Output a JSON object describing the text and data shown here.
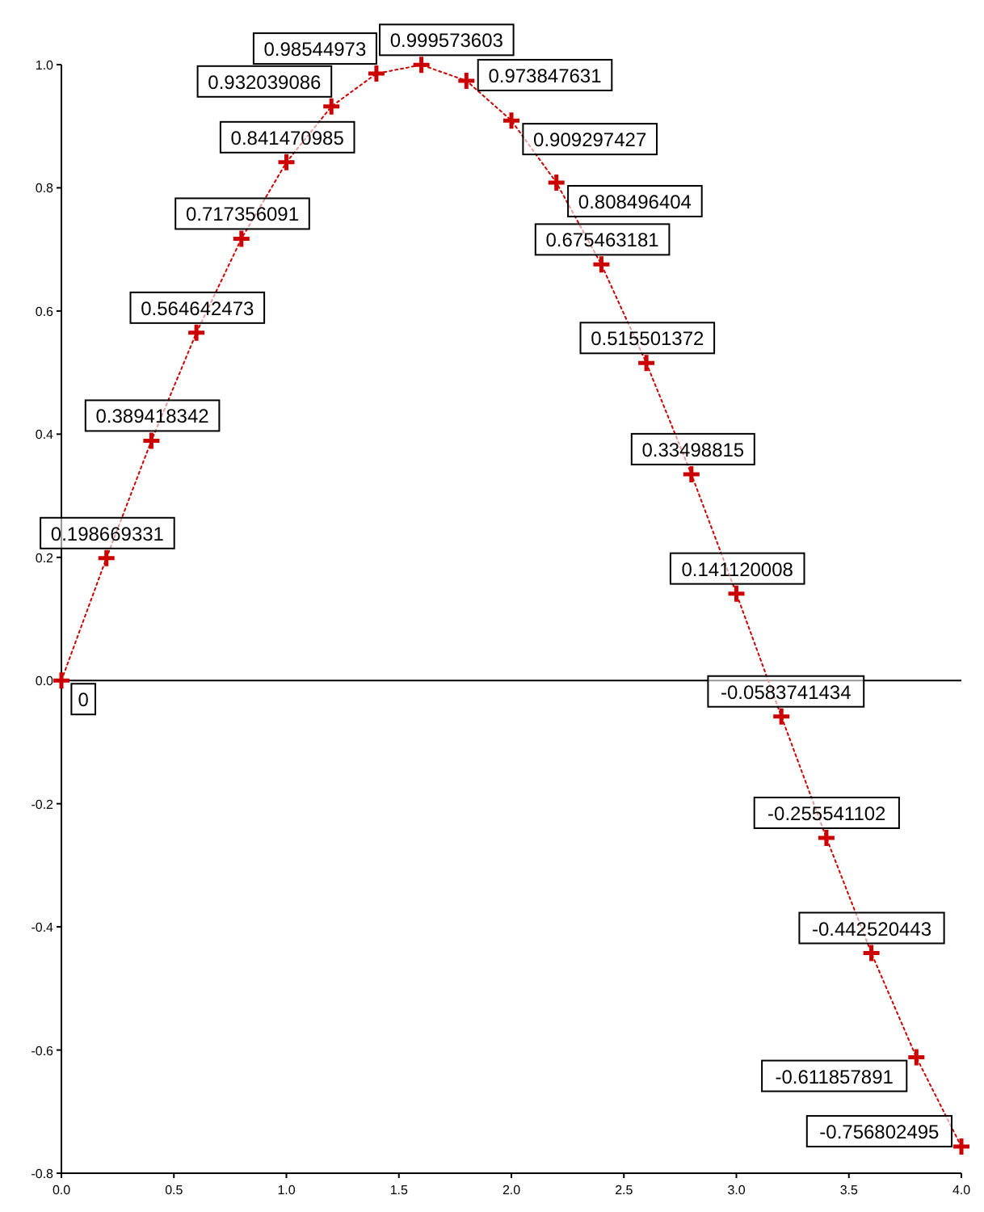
{
  "chart_data": {
    "type": "line",
    "x": [
      0,
      0.2,
      0.4,
      0.6,
      0.8,
      1.0,
      1.2,
      1.4,
      1.6,
      1.8,
      2.0,
      2.2,
      2.4,
      2.6,
      2.8,
      3.0,
      3.2,
      3.4,
      3.6,
      3.8,
      4.0
    ],
    "series": [
      {
        "color": "#cc0000",
        "values": [
          0,
          0.198669331,
          0.389418342,
          0.564642473,
          0.717356091,
          0.841470985,
          0.932039086,
          0.98544973,
          0.999573603,
          0.973847631,
          0.909297427,
          0.808496404,
          0.675463181,
          0.515501372,
          0.33498815,
          0.141120008,
          -0.0583741434,
          -0.255541102,
          -0.442520443,
          -0.611857891,
          -0.756802495
        ]
      }
    ],
    "data_labels": true,
    "marker": "cross",
    "line_style": "dotted",
    "grid": false,
    "xlim": [
      0,
      4
    ],
    "xticks": [
      {
        "value": 0,
        "label": "0.0"
      },
      {
        "value": 0.5,
        "label": "0.5"
      },
      {
        "value": 1,
        "label": "1.0"
      },
      {
        "value": 1.5,
        "label": "1.5"
      },
      {
        "value": 2,
        "label": "2.0"
      },
      {
        "value": 2.5,
        "label": "2.5"
      },
      {
        "value": 3,
        "label": "3.0"
      },
      {
        "value": 3.5,
        "label": "3.5"
      },
      {
        "value": 4,
        "label": "4.0"
      }
    ],
    "ylim": [
      -0.8,
      1
    ],
    "yticks": [
      {
        "value": -0.8,
        "label": "-0.8"
      },
      {
        "value": -0.6,
        "label": "-0.6"
      },
      {
        "value": -0.4,
        "label": "-0.4"
      },
      {
        "value": -0.2,
        "label": "-0.2"
      },
      {
        "value": 0,
        "label": "0.0"
      },
      {
        "value": 0.2,
        "label": "0.2"
      },
      {
        "value": 0.4,
        "label": "0.4"
      },
      {
        "value": 0.6,
        "label": "0.6"
      },
      {
        "value": 0.8,
        "label": "0.8"
      },
      {
        "value": 1,
        "label": "1.0"
      }
    ],
    "ref_lines": [
      {
        "axis": "y",
        "value": 0,
        "color": "#000000"
      }
    ]
  }
}
